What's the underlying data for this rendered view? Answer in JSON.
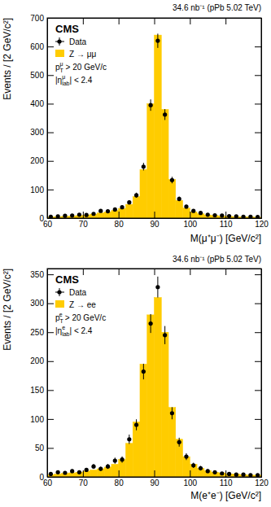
{
  "chart_data": [
    {
      "type": "histogram",
      "lumi_label": "34.6 nb⁻¹ (pPb 5.02 TeV)",
      "experiment": "CMS",
      "x_label": "M(μ⁺μ⁻) [GeV/c²]",
      "y_label": "Events / [2 GeV/c²]",
      "annotations": [
        {
          "base": "p",
          "sub": "T",
          "sup": "μ",
          "text": " > 20 GeV/c"
        },
        {
          "base": "|η",
          "sub": "lab",
          "sup": "μ",
          "text": "| < 2.4"
        }
      ],
      "bins": [
        60,
        62,
        64,
        66,
        68,
        70,
        72,
        74,
        76,
        78,
        80,
        82,
        84,
        86,
        88,
        90,
        92,
        94,
        96,
        98,
        100,
        102,
        104,
        106,
        108,
        110,
        112,
        114,
        116,
        118,
        120
      ],
      "series": [
        {
          "name": "Data",
          "type": "scatter",
          "marker": "circle",
          "color": "#000000",
          "values": [
            5,
            6,
            8,
            9,
            12,
            11,
            15,
            25,
            24,
            30,
            38,
            55,
            80,
            180,
            395,
            620,
            362,
            133,
            67,
            40,
            25,
            18,
            12,
            10,
            9,
            7,
            6,
            5,
            5,
            4
          ],
          "errors": [
            2.2,
            2.4,
            2.8,
            3,
            3.5,
            3.3,
            3.9,
            5,
            4.9,
            5.5,
            6.2,
            7.4,
            8.9,
            13.4,
            19.9,
            24.9,
            19,
            11.5,
            8.2,
            6.3,
            5,
            4.2,
            3.5,
            3.2,
            3,
            2.6,
            2.4,
            2.2,
            2.2,
            2
          ]
        },
        {
          "name": "Z → μμ",
          "type": "bar",
          "color": "#ffcc00",
          "values": [
            4,
            5,
            6,
            7,
            9,
            11,
            14,
            18,
            22,
            27,
            34,
            48,
            75,
            170,
            400,
            640,
            380,
            135,
            62,
            35,
            22,
            15,
            11,
            9,
            7,
            6,
            5,
            4,
            4,
            3
          ]
        }
      ],
      "xlim": [
        60,
        120
      ],
      "xticks": [
        60,
        70,
        80,
        90,
        100,
        110,
        120
      ],
      "ylim": [
        0,
        700
      ],
      "yticks": [
        0,
        100,
        200,
        300,
        400,
        500,
        600,
        700
      ],
      "legend": "top-left"
    },
    {
      "type": "histogram",
      "lumi_label": "34.6 nb⁻¹ (pPb 5.02 TeV)",
      "experiment": "CMS",
      "x_label": "M(e⁺e⁻) [GeV/c²]",
      "y_label": "Events / [2 GeV/c²]",
      "annotations": [
        {
          "base": "p",
          "sub": "T",
          "sup": "e",
          "text": " > 20 GeV/c"
        },
        {
          "base": "|η",
          "sub": "lab",
          "sup": "e",
          "text": "| < 2.4"
        }
      ],
      "bins": [
        60,
        62,
        64,
        66,
        68,
        70,
        72,
        74,
        76,
        78,
        80,
        82,
        84,
        86,
        88,
        90,
        92,
        94,
        96,
        98,
        100,
        102,
        104,
        106,
        108,
        110,
        112,
        114,
        116,
        118,
        120
      ],
      "series": [
        {
          "name": "Data",
          "type": "scatter",
          "marker": "circle",
          "color": "#000000",
          "values": [
            5,
            8,
            7,
            10,
            8,
            12,
            18,
            14,
            18,
            28,
            30,
            65,
            90,
            182,
            265,
            328,
            245,
            110,
            60,
            35,
            20,
            15,
            10,
            8,
            6,
            5,
            4,
            4,
            3,
            3
          ],
          "errors": [
            2.2,
            2.8,
            2.6,
            3.2,
            2.8,
            3.5,
            4.2,
            3.7,
            4.2,
            5.3,
            5.5,
            8.1,
            9.5,
            13.5,
            16.3,
            18.1,
            15.7,
            10.5,
            7.7,
            5.9,
            4.5,
            3.9,
            3.2,
            2.8,
            2.4,
            2.2,
            2,
            2,
            1.7,
            1.7
          ]
        },
        {
          "name": "Z → ee",
          "type": "bar",
          "color": "#ffcc00",
          "values": [
            4,
            5,
            6,
            7,
            8,
            10,
            12,
            14,
            17,
            22,
            30,
            58,
            95,
            195,
            280,
            310,
            250,
            120,
            65,
            35,
            22,
            15,
            11,
            8,
            7,
            5,
            5,
            4,
            3,
            3
          ]
        }
      ],
      "xlim": [
        60,
        120
      ],
      "xticks": [
        60,
        70,
        80,
        90,
        100,
        110,
        120
      ],
      "ylim": [
        0,
        360
      ],
      "yticks": [
        0,
        50,
        100,
        150,
        200,
        250,
        300,
        350
      ],
      "legend": "top-left"
    }
  ]
}
